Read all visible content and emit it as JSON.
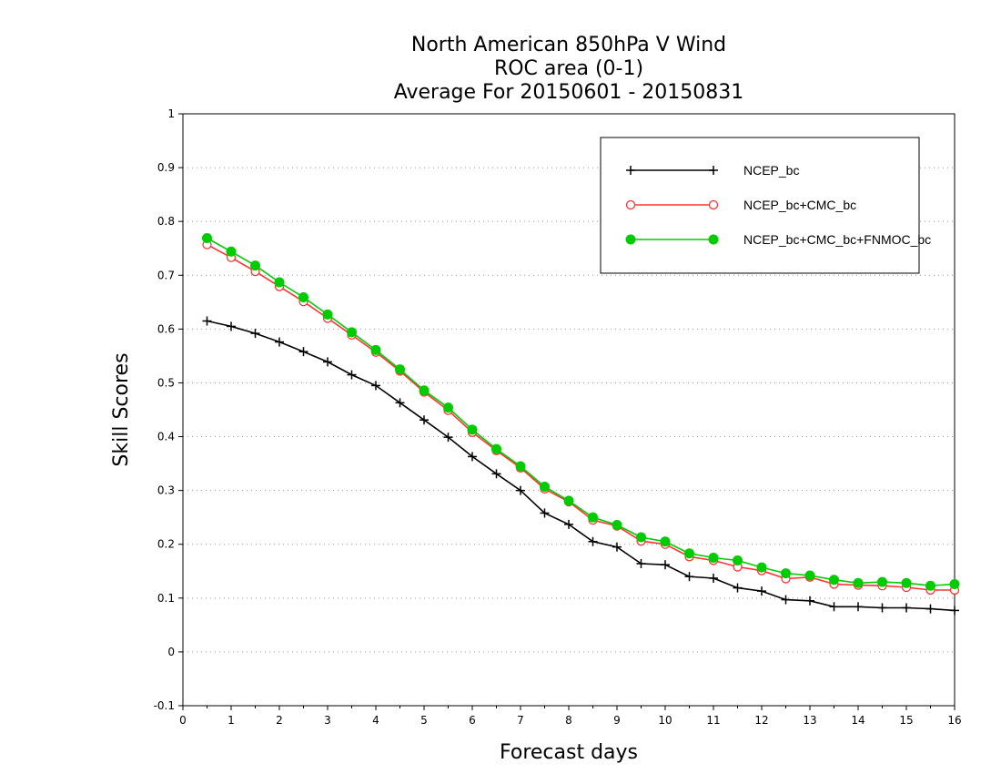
{
  "chart_data": {
    "type": "line",
    "title": [
      "North American 850hPa V Wind",
      "ROC area (0-1)",
      "Average For 20150601 - 20150831"
    ],
    "xlabel": "Forecast days",
    "ylabel": "Skill Scores",
    "xlim": [
      0,
      16
    ],
    "ylim": [
      -0.1,
      1
    ],
    "xticks": [
      0,
      1,
      2,
      3,
      4,
      5,
      6,
      7,
      8,
      9,
      10,
      11,
      12,
      13,
      14,
      15,
      16
    ],
    "yticks": [
      -0.1,
      0,
      0.1,
      0.2,
      0.3,
      0.4,
      0.5,
      0.6,
      0.7,
      0.8,
      0.9,
      1
    ],
    "ytick_labels": [
      "-0.1",
      "0",
      "0.1",
      "0.2",
      "0.3",
      "0.4",
      "0.5",
      "0.6",
      "0.7",
      "0.8",
      "0.9",
      "1"
    ],
    "grid": "horizontal dotted",
    "legend_position": "top-right",
    "x": [
      0.5,
      1,
      1.5,
      2,
      2.5,
      3,
      3.5,
      4,
      4.5,
      5,
      5.5,
      6,
      6.5,
      7,
      7.5,
      8,
      8.5,
      9,
      9.5,
      10,
      10.5,
      11,
      11.5,
      12,
      12.5,
      13,
      13.5,
      14,
      14.5,
      15,
      15.5,
      16
    ],
    "series": [
      {
        "name": "NCEP_bc",
        "color": "#000000",
        "marker": "plus",
        "values": [
          0.615,
          0.605,
          0.592,
          0.576,
          0.558,
          0.539,
          0.515,
          0.495,
          0.463,
          0.431,
          0.399,
          0.363,
          0.331,
          0.3,
          0.258,
          0.237,
          0.205,
          0.195,
          0.164,
          0.162,
          0.14,
          0.137,
          0.119,
          0.113,
          0.097,
          0.095,
          0.084,
          0.084,
          0.082,
          0.082,
          0.08,
          0.077
        ]
      },
      {
        "name": "NCEP_bc+CMC_bc",
        "color": "#ff3333",
        "marker": "open-circle",
        "values": [
          0.757,
          0.733,
          0.707,
          0.679,
          0.651,
          0.62,
          0.589,
          0.557,
          0.522,
          0.483,
          0.449,
          0.408,
          0.374,
          0.342,
          0.303,
          0.279,
          0.245,
          0.234,
          0.206,
          0.2,
          0.177,
          0.17,
          0.158,
          0.151,
          0.136,
          0.139,
          0.126,
          0.124,
          0.123,
          0.12,
          0.115,
          0.115
        ]
      },
      {
        "name": "NCEP_bc+CMC_bc+FNMOC_bc",
        "color": "#00cc00",
        "marker": "filled-circle",
        "values": [
          0.769,
          0.744,
          0.718,
          0.687,
          0.659,
          0.627,
          0.594,
          0.561,
          0.525,
          0.486,
          0.454,
          0.413,
          0.377,
          0.345,
          0.307,
          0.281,
          0.25,
          0.236,
          0.213,
          0.205,
          0.183,
          0.175,
          0.17,
          0.157,
          0.146,
          0.142,
          0.134,
          0.128,
          0.13,
          0.128,
          0.123,
          0.126
        ]
      }
    ]
  }
}
